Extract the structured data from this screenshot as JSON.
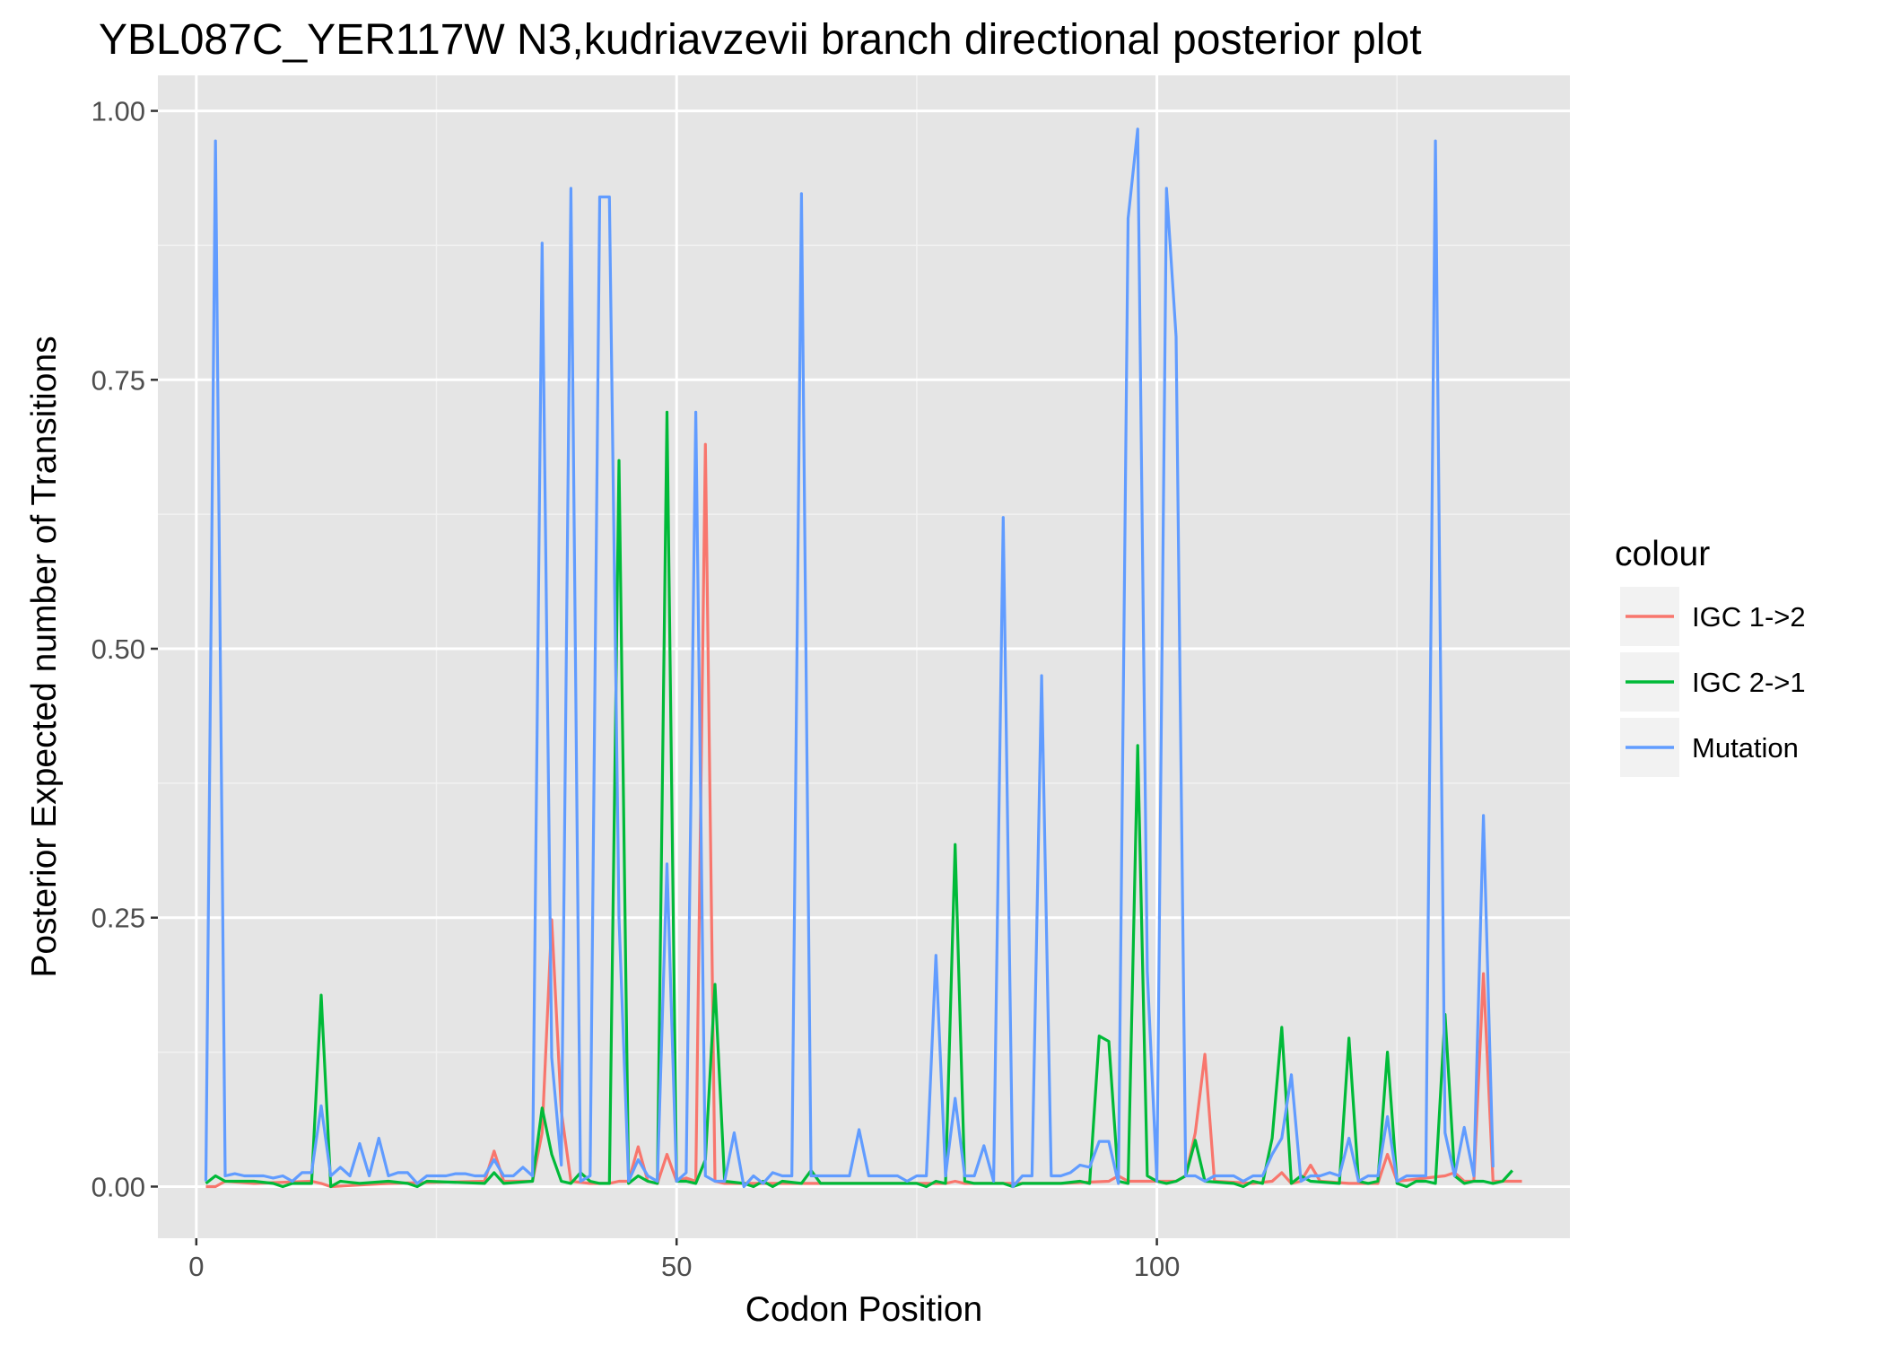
{
  "chart_data": {
    "type": "line",
    "title": "YBL087C_YER117W N3,kudriavzevii branch directional posterior plot",
    "xlabel": "Codon Position",
    "ylabel": "Posterior Expected number of Transitions",
    "xlim": [
      -4,
      143
    ],
    "ylim": [
      -0.048,
      1.033
    ],
    "x_ticks": [
      0,
      50,
      100
    ],
    "x_tick_labels": [
      "0",
      "50",
      "100"
    ],
    "y_ticks": [
      0,
      0.25,
      0.5,
      0.75,
      1.0
    ],
    "y_tick_labels": [
      "0.00",
      "0.25",
      "0.50",
      "0.75",
      "1.00"
    ],
    "grid": true,
    "background": "#e5e5e5",
    "legend": {
      "title": "colour",
      "position": "right"
    },
    "series": [
      {
        "name": "IGC 1->2",
        "color": "#f8766d",
        "points": [
          [
            1,
            0.0
          ],
          [
            2,
            0.0
          ],
          [
            3,
            0.005
          ],
          [
            6,
            0.003
          ],
          [
            12,
            0.005
          ],
          [
            13,
            0.003
          ],
          [
            14,
            0.0
          ],
          [
            20,
            0.003
          ],
          [
            30,
            0.005
          ],
          [
            31,
            0.033
          ],
          [
            32,
            0.005
          ],
          [
            35,
            0.005
          ],
          [
            36,
            0.05
          ],
          [
            37,
            0.248
          ],
          [
            38,
            0.07
          ],
          [
            39,
            0.005
          ],
          [
            41,
            0.003
          ],
          [
            43,
            0.003
          ],
          [
            44,
            0.005
          ],
          [
            45,
            0.005
          ],
          [
            46,
            0.037
          ],
          [
            47,
            0.005
          ],
          [
            48,
            0.003
          ],
          [
            49,
            0.03
          ],
          [
            50,
            0.005
          ],
          [
            51,
            0.008
          ],
          [
            52,
            0.005
          ],
          [
            53,
            0.69
          ],
          [
            54,
            0.005
          ],
          [
            55,
            0.003
          ],
          [
            60,
            0.003
          ],
          [
            65,
            0.003
          ],
          [
            70,
            0.003
          ],
          [
            75,
            0.003
          ],
          [
            78,
            0.003
          ],
          [
            79,
            0.005
          ],
          [
            80,
            0.003
          ],
          [
            85,
            0.003
          ],
          [
            90,
            0.003
          ],
          [
            95,
            0.005
          ],
          [
            96,
            0.01
          ],
          [
            97,
            0.005
          ],
          [
            98,
            0.005
          ],
          [
            100,
            0.005
          ],
          [
            102,
            0.005
          ],
          [
            103,
            0.01
          ],
          [
            104,
            0.05
          ],
          [
            105,
            0.123
          ],
          [
            106,
            0.005
          ],
          [
            110,
            0.003
          ],
          [
            112,
            0.005
          ],
          [
            113,
            0.013
          ],
          [
            114,
            0.003
          ],
          [
            115,
            0.005
          ],
          [
            116,
            0.02
          ],
          [
            117,
            0.005
          ],
          [
            120,
            0.003
          ],
          [
            123,
            0.003
          ],
          [
            124,
            0.03
          ],
          [
            125,
            0.005
          ],
          [
            130,
            0.01
          ],
          [
            131,
            0.013
          ],
          [
            132,
            0.005
          ],
          [
            133,
            0.005
          ],
          [
            134,
            0.198
          ],
          [
            135,
            0.005
          ],
          [
            138,
            0.005
          ]
        ]
      },
      {
        "name": "IGC 2->1",
        "color": "#00ba38",
        "points": [
          [
            1,
            0.003
          ],
          [
            2,
            0.01
          ],
          [
            3,
            0.005
          ],
          [
            6,
            0.005
          ],
          [
            8,
            0.003
          ],
          [
            9,
            0.0
          ],
          [
            10,
            0.003
          ],
          [
            12,
            0.003
          ],
          [
            13,
            0.178
          ],
          [
            14,
            0.0
          ],
          [
            15,
            0.005
          ],
          [
            17,
            0.003
          ],
          [
            20,
            0.005
          ],
          [
            22,
            0.003
          ],
          [
            23,
            0.0
          ],
          [
            24,
            0.005
          ],
          [
            30,
            0.003
          ],
          [
            31,
            0.013
          ],
          [
            32,
            0.003
          ],
          [
            35,
            0.005
          ],
          [
            36,
            0.073
          ],
          [
            37,
            0.03
          ],
          [
            38,
            0.005
          ],
          [
            39,
            0.003
          ],
          [
            40,
            0.013
          ],
          [
            41,
            0.005
          ],
          [
            42,
            0.003
          ],
          [
            43,
            0.003
          ],
          [
            44,
            0.675
          ],
          [
            45,
            0.003
          ],
          [
            46,
            0.01
          ],
          [
            47,
            0.005
          ],
          [
            48,
            0.003
          ],
          [
            49,
            0.72
          ],
          [
            50,
            0.005
          ],
          [
            51,
            0.005
          ],
          [
            52,
            0.003
          ],
          [
            53,
            0.025
          ],
          [
            54,
            0.188
          ],
          [
            55,
            0.005
          ],
          [
            57,
            0.003
          ],
          [
            58,
            0.0
          ],
          [
            59,
            0.005
          ],
          [
            60,
            0.0
          ],
          [
            61,
            0.005
          ],
          [
            63,
            0.003
          ],
          [
            64,
            0.015
          ],
          [
            65,
            0.003
          ],
          [
            70,
            0.003
          ],
          [
            75,
            0.003
          ],
          [
            76,
            0.0
          ],
          [
            77,
            0.005
          ],
          [
            78,
            0.003
          ],
          [
            79,
            0.318
          ],
          [
            80,
            0.005
          ],
          [
            81,
            0.003
          ],
          [
            84,
            0.003
          ],
          [
            85,
            0.0
          ],
          [
            86,
            0.003
          ],
          [
            90,
            0.003
          ],
          [
            92,
            0.005
          ],
          [
            93,
            0.003
          ],
          [
            94,
            0.14
          ],
          [
            95,
            0.135
          ],
          [
            96,
            0.005
          ],
          [
            97,
            0.003
          ],
          [
            98,
            0.41
          ],
          [
            99,
            0.01
          ],
          [
            100,
            0.005
          ],
          [
            101,
            0.003
          ],
          [
            102,
            0.005
          ],
          [
            103,
            0.01
          ],
          [
            104,
            0.043
          ],
          [
            105,
            0.005
          ],
          [
            108,
            0.003
          ],
          [
            109,
            0.0
          ],
          [
            110,
            0.005
          ],
          [
            111,
            0.003
          ],
          [
            112,
            0.045
          ],
          [
            113,
            0.148
          ],
          [
            114,
            0.003
          ],
          [
            115,
            0.01
          ],
          [
            116,
            0.005
          ],
          [
            119,
            0.003
          ],
          [
            120,
            0.138
          ],
          [
            121,
            0.005
          ],
          [
            122,
            0.003
          ],
          [
            123,
            0.005
          ],
          [
            124,
            0.125
          ],
          [
            125,
            0.003
          ],
          [
            126,
            0.0
          ],
          [
            127,
            0.005
          ],
          [
            128,
            0.005
          ],
          [
            129,
            0.003
          ],
          [
            130,
            0.16
          ],
          [
            131,
            0.01
          ],
          [
            132,
            0.003
          ],
          [
            133,
            0.005
          ],
          [
            134,
            0.005
          ],
          [
            135,
            0.003
          ],
          [
            136,
            0.005
          ],
          [
            137,
            0.015
          ]
        ]
      },
      {
        "name": "Mutation",
        "color": "#619cff",
        "points": [
          [
            1,
            0.005
          ],
          [
            2,
            0.972
          ],
          [
            3,
            0.01
          ],
          [
            4,
            0.012
          ],
          [
            5,
            0.01
          ],
          [
            6,
            0.01
          ],
          [
            7,
            0.01
          ],
          [
            8,
            0.008
          ],
          [
            9,
            0.01
          ],
          [
            10,
            0.005
          ],
          [
            11,
            0.013
          ],
          [
            12,
            0.013
          ],
          [
            13,
            0.075
          ],
          [
            14,
            0.01
          ],
          [
            15,
            0.018
          ],
          [
            16,
            0.01
          ],
          [
            17,
            0.04
          ],
          [
            18,
            0.01
          ],
          [
            19,
            0.045
          ],
          [
            20,
            0.01
          ],
          [
            21,
            0.013
          ],
          [
            22,
            0.013
          ],
          [
            23,
            0.003
          ],
          [
            24,
            0.01
          ],
          [
            25,
            0.01
          ],
          [
            26,
            0.01
          ],
          [
            27,
            0.012
          ],
          [
            28,
            0.012
          ],
          [
            29,
            0.01
          ],
          [
            30,
            0.01
          ],
          [
            31,
            0.025
          ],
          [
            32,
            0.01
          ],
          [
            33,
            0.01
          ],
          [
            34,
            0.018
          ],
          [
            35,
            0.01
          ],
          [
            36,
            0.877
          ],
          [
            37,
            0.12
          ],
          [
            38,
            0.02
          ],
          [
            39,
            0.928
          ],
          [
            40,
            0.005
          ],
          [
            41,
            0.01
          ],
          [
            42,
            0.92
          ],
          [
            43,
            0.92
          ],
          [
            44,
            0.25
          ],
          [
            45,
            0.005
          ],
          [
            46,
            0.025
          ],
          [
            47,
            0.01
          ],
          [
            48,
            0.005
          ],
          [
            49,
            0.3
          ],
          [
            50,
            0.005
          ],
          [
            51,
            0.013
          ],
          [
            52,
            0.72
          ],
          [
            53,
            0.01
          ],
          [
            54,
            0.005
          ],
          [
            55,
            0.005
          ],
          [
            56,
            0.05
          ],
          [
            57,
            0.0
          ],
          [
            58,
            0.01
          ],
          [
            59,
            0.003
          ],
          [
            60,
            0.013
          ],
          [
            61,
            0.01
          ],
          [
            62,
            0.01
          ],
          [
            63,
            0.923
          ],
          [
            64,
            0.01
          ],
          [
            65,
            0.01
          ],
          [
            66,
            0.01
          ],
          [
            67,
            0.01
          ],
          [
            68,
            0.01
          ],
          [
            69,
            0.053
          ],
          [
            70,
            0.01
          ],
          [
            71,
            0.01
          ],
          [
            72,
            0.01
          ],
          [
            73,
            0.01
          ],
          [
            74,
            0.005
          ],
          [
            75,
            0.01
          ],
          [
            76,
            0.01
          ],
          [
            77,
            0.215
          ],
          [
            78,
            0.01
          ],
          [
            79,
            0.082
          ],
          [
            80,
            0.01
          ],
          [
            81,
            0.01
          ],
          [
            82,
            0.038
          ],
          [
            83,
            0.005
          ],
          [
            84,
            0.622
          ],
          [
            85,
            0.0
          ],
          [
            86,
            0.01
          ],
          [
            87,
            0.01
          ],
          [
            88,
            0.475
          ],
          [
            89,
            0.01
          ],
          [
            90,
            0.01
          ],
          [
            91,
            0.013
          ],
          [
            92,
            0.02
          ],
          [
            93,
            0.018
          ],
          [
            94,
            0.042
          ],
          [
            95,
            0.042
          ],
          [
            96,
            0.003
          ],
          [
            97,
            0.9
          ],
          [
            98,
            0.983
          ],
          [
            99,
            0.2
          ],
          [
            100,
            0.005
          ],
          [
            101,
            0.928
          ],
          [
            102,
            0.79
          ],
          [
            103,
            0.01
          ],
          [
            104,
            0.01
          ],
          [
            105,
            0.005
          ],
          [
            106,
            0.01
          ],
          [
            107,
            0.01
          ],
          [
            108,
            0.01
          ],
          [
            109,
            0.005
          ],
          [
            110,
            0.01
          ],
          [
            111,
            0.01
          ],
          [
            112,
            0.03
          ],
          [
            113,
            0.045
          ],
          [
            114,
            0.104
          ],
          [
            115,
            0.005
          ],
          [
            116,
            0.01
          ],
          [
            117,
            0.01
          ],
          [
            118,
            0.013
          ],
          [
            119,
            0.01
          ],
          [
            120,
            0.045
          ],
          [
            121,
            0.005
          ],
          [
            122,
            0.01
          ],
          [
            123,
            0.01
          ],
          [
            124,
            0.065
          ],
          [
            125,
            0.005
          ],
          [
            126,
            0.01
          ],
          [
            127,
            0.01
          ],
          [
            128,
            0.01
          ],
          [
            129,
            0.972
          ],
          [
            130,
            0.05
          ],
          [
            131,
            0.01
          ],
          [
            132,
            0.055
          ],
          [
            133,
            0.01
          ],
          [
            134,
            0.345
          ],
          [
            135,
            0.018
          ]
        ]
      }
    ]
  }
}
